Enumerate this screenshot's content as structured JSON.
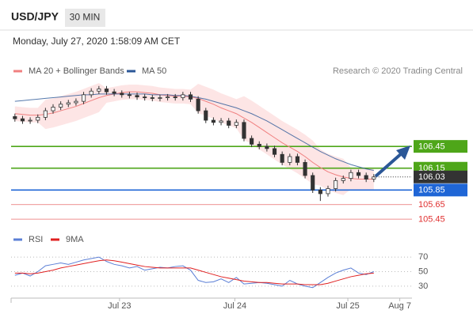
{
  "header": {
    "symbol": "USD/JPY",
    "interval": "30 MIN",
    "timestamp": "Monday, July 27, 2020 1:58:09 AM CET"
  },
  "credit": "Research © 2020 Trading Central",
  "chart_data": [
    {
      "type": "candlestick",
      "xlim": [
        -0.5,
        52
      ],
      "ylim": [
        105.31,
        107.43
      ],
      "color_up": "#ffffff",
      "color_down": "#333333",
      "open": [
        106.86,
        106.83,
        106.8,
        106.81,
        106.85,
        106.94,
        106.99,
        107.03,
        107.05,
        107.07,
        107.16,
        107.21,
        107.24,
        107.2,
        107.18,
        107.16,
        107.15,
        107.13,
        107.12,
        107.11,
        107.12,
        107.13,
        107.12,
        107.16,
        107.1,
        106.94,
        106.81,
        106.78,
        106.8,
        106.74,
        106.78,
        106.56,
        106.48,
        106.45,
        106.42,
        106.34,
        106.23,
        106.31,
        106.23,
        106.05,
        105.85,
        105.8,
        105.87,
        105.98,
        106.01,
        106.09,
        106.05,
        106.0
      ],
      "high": [
        106.9,
        106.87,
        106.85,
        106.89,
        106.98,
        107.03,
        107.07,
        107.09,
        107.11,
        107.2,
        107.25,
        107.28,
        107.28,
        107.24,
        107.22,
        107.2,
        107.19,
        107.17,
        107.16,
        107.16,
        107.17,
        107.17,
        107.2,
        107.2,
        107.14,
        106.98,
        106.85,
        106.84,
        106.84,
        106.82,
        106.82,
        106.6,
        106.52,
        106.49,
        106.46,
        106.38,
        106.35,
        106.35,
        106.27,
        106.09,
        105.89,
        105.91,
        106.02,
        106.05,
        106.13,
        106.13,
        106.09,
        106.07
      ],
      "low": [
        106.79,
        106.76,
        106.76,
        106.77,
        106.81,
        106.9,
        106.95,
        106.99,
        107.01,
        107.03,
        107.12,
        107.17,
        107.16,
        107.14,
        107.12,
        107.11,
        107.09,
        107.08,
        107.07,
        107.07,
        107.08,
        107.08,
        107.08,
        107.06,
        106.9,
        106.77,
        106.74,
        106.74,
        106.7,
        106.7,
        106.52,
        106.44,
        106.41,
        106.38,
        106.3,
        106.19,
        106.19,
        106.19,
        106.01,
        105.81,
        105.7,
        105.76,
        105.83,
        105.94,
        105.97,
        106.01,
        105.96,
        105.96
      ],
      "close": [
        106.83,
        106.8,
        106.81,
        106.85,
        106.94,
        106.99,
        107.03,
        107.05,
        107.07,
        107.16,
        107.21,
        107.24,
        107.2,
        107.18,
        107.16,
        107.15,
        107.13,
        107.12,
        107.11,
        107.12,
        107.13,
        107.12,
        107.16,
        107.1,
        106.94,
        106.81,
        106.78,
        106.8,
        106.74,
        106.78,
        106.56,
        106.48,
        106.45,
        106.42,
        106.34,
        106.23,
        106.31,
        106.23,
        106.05,
        105.85,
        105.8,
        105.87,
        105.98,
        106.01,
        106.09,
        106.05,
        106.0,
        106.03
      ],
      "series": [
        {
          "name": "MA 20 + Bollinger Bands",
          "color": "#f08080",
          "band_color": "#fde0e0",
          "values": [
            106.9,
            106.89,
            106.88,
            106.88,
            106.89,
            106.91,
            106.94,
            106.97,
            107.0,
            107.04,
            107.08,
            107.12,
            107.15,
            107.17,
            107.19,
            107.2,
            107.2,
            107.19,
            107.18,
            107.16,
            107.15,
            107.14,
            107.14,
            107.13,
            107.11,
            107.07,
            107.03,
            106.98,
            106.94,
            106.9,
            106.84,
            106.78,
            106.71,
            106.64,
            106.57,
            106.5,
            106.44,
            106.38,
            106.31,
            106.23,
            106.16,
            106.1,
            106.06,
            106.03,
            106.01,
            106.0,
            106.0,
            106.0
          ],
          "upper": [
            107.0,
            106.99,
            106.98,
            106.98,
            107.09,
            107.11,
            107.14,
            107.17,
            107.2,
            107.24,
            107.28,
            107.32,
            107.25,
            107.27,
            107.29,
            107.3,
            107.3,
            107.29,
            107.28,
            107.26,
            107.25,
            107.24,
            107.24,
            107.23,
            107.31,
            107.27,
            107.23,
            107.18,
            107.14,
            107.1,
            107.14,
            107.08,
            107.01,
            106.94,
            106.87,
            106.8,
            106.74,
            106.68,
            106.61,
            106.53,
            106.41,
            106.35,
            106.31,
            106.28,
            106.16,
            106.15,
            106.15,
            106.15
          ],
          "lower": [
            106.8,
            106.79,
            106.78,
            106.78,
            106.69,
            106.71,
            106.74,
            106.77,
            106.8,
            106.84,
            106.88,
            106.92,
            107.05,
            107.07,
            107.09,
            107.1,
            107.1,
            107.09,
            107.08,
            107.06,
            107.05,
            107.04,
            107.04,
            107.03,
            106.91,
            106.87,
            106.83,
            106.78,
            106.74,
            106.7,
            106.54,
            106.48,
            106.41,
            106.34,
            106.27,
            106.2,
            106.14,
            106.08,
            106.01,
            105.93,
            105.91,
            105.85,
            105.81,
            105.78,
            105.86,
            105.85,
            105.85,
            105.85
          ]
        },
        {
          "name": "MA 50",
          "color": "#2b5797",
          "values": [
            107.07,
            107.08,
            107.09,
            107.1,
            107.11,
            107.12,
            107.13,
            107.14,
            107.15,
            107.16,
            107.16,
            107.17,
            107.17,
            107.17,
            107.17,
            107.17,
            107.17,
            107.17,
            107.16,
            107.16,
            107.16,
            107.15,
            107.15,
            107.14,
            107.12,
            107.1,
            107.07,
            107.04,
            107.01,
            106.98,
            106.94,
            106.9,
            106.85,
            106.8,
            106.74,
            106.68,
            106.62,
            106.56,
            106.5,
            106.44,
            106.38,
            106.33,
            106.28,
            106.24,
            106.2,
            106.17,
            106.14,
            106.12
          ]
        }
      ],
      "levels": [
        {
          "value": 106.45,
          "color": "#4ea619",
          "style": "box"
        },
        {
          "value": 106.15,
          "color": "#4ea619",
          "style": "box"
        },
        {
          "value": 105.85,
          "color": "#1f66d6",
          "style": "box"
        },
        {
          "value": 105.65,
          "color": "#e03030",
          "style": "text"
        },
        {
          "value": 105.45,
          "color": "#e03030",
          "style": "text"
        }
      ],
      "last": {
        "value": 106.03,
        "color": "#333333"
      }
    },
    {
      "type": "line",
      "xlim": [
        -0.5,
        52
      ],
      "ylim": [
        19,
        81
      ],
      "yticks": [
        30,
        50,
        70
      ],
      "grid": true,
      "xticks": [
        {
          "value": 13.7,
          "label": "Jul 23"
        },
        {
          "value": 28.8,
          "label": "Jul 24"
        },
        {
          "value": 43.6,
          "label": "Jul 25"
        },
        {
          "value": 50.4,
          "label": "Aug 7"
        }
      ],
      "series": [
        {
          "name": "RSI",
          "color": "#5b7fd6",
          "values": [
            45,
            48,
            44,
            50,
            58,
            60,
            62,
            60,
            63,
            66,
            68,
            70,
            64,
            60,
            58,
            55,
            57,
            52,
            54,
            56,
            55,
            57,
            58,
            52,
            38,
            35,
            36,
            40,
            35,
            42,
            33,
            34,
            35,
            34,
            32,
            30,
            38,
            33,
            30,
            28,
            35,
            42,
            48,
            52,
            55,
            48,
            46,
            50
          ]
        },
        {
          "name": "9MA",
          "color": "#e02020",
          "values": [
            48,
            48,
            47,
            48,
            50,
            52,
            55,
            57,
            59,
            61,
            63,
            65,
            66,
            65,
            63,
            61,
            59,
            57,
            56,
            55,
            55,
            55,
            55,
            55,
            52,
            49,
            46,
            43,
            41,
            39,
            37,
            36,
            35,
            35,
            34,
            33,
            33,
            33,
            32,
            32,
            32,
            34,
            37,
            40,
            43,
            45,
            47,
            48
          ]
        }
      ]
    }
  ]
}
